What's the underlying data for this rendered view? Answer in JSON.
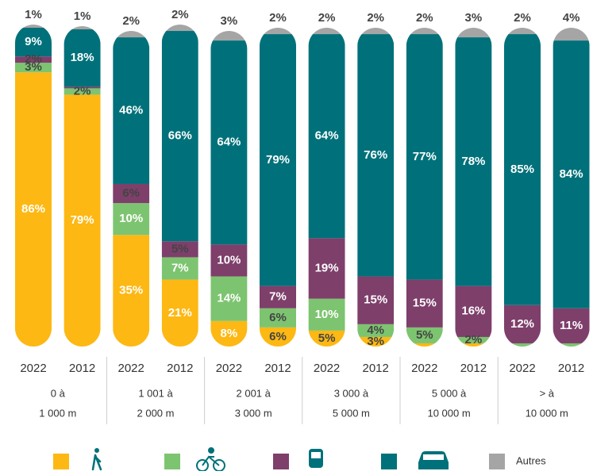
{
  "chart_data": {
    "type": "bar",
    "stacked": true,
    "ylim": [
      0,
      100
    ],
    "categories": [
      "2022",
      "2012",
      "2022",
      "2012",
      "2022",
      "2012",
      "2022",
      "2012",
      "2022",
      "2012",
      "2022",
      "2012"
    ],
    "groups": [
      [
        "0 à",
        "1 000 m"
      ],
      [
        "1 001 à",
        "2 000 m"
      ],
      [
        "2 001 à",
        "3 000 m"
      ],
      [
        "3 000 à",
        "5 000 m"
      ],
      [
        "5 000 à",
        "10 000 m"
      ],
      [
        "> à",
        "10 000 m"
      ]
    ],
    "series": [
      {
        "color": "#FDB813",
        "values": [
          86,
          79,
          35,
          21,
          8,
          6,
          5,
          3,
          1,
          1,
          0,
          0
        ],
        "value_labels": [
          "86%",
          "79%",
          "35%",
          "21%",
          "8%",
          "6%",
          "5%",
          "3%",
          null,
          null,
          null,
          null
        ]
      },
      {
        "color": "#7DC470",
        "values": [
          3,
          2,
          10,
          7,
          14,
          6,
          10,
          4,
          5,
          2,
          1,
          1
        ],
        "value_labels": [
          "3%",
          "2%",
          "10%",
          "7%",
          "14%",
          "6%",
          "10%",
          "4%",
          "5%",
          "2%",
          null,
          null
        ]
      },
      {
        "color": "#7E3F6B",
        "values": [
          2,
          0.5,
          6,
          5,
          10,
          7,
          19,
          15,
          15,
          16,
          12,
          11
        ],
        "value_labels": [
          "2%",
          null,
          "6%",
          "5%",
          "10%",
          "7%",
          "19%",
          "15%",
          "15%",
          "16%",
          "12%",
          "11%"
        ]
      },
      {
        "color": "#00717A",
        "values": [
          9,
          18,
          46,
          66,
          64,
          79,
          64,
          76,
          77,
          78,
          85,
          84
        ],
        "value_labels": [
          "9%",
          "18%",
          "46%",
          "66%",
          "64%",
          "79%",
          "64%",
          "76%",
          "77%",
          "78%",
          "85%",
          "84%"
        ]
      },
      {
        "name": "Autres",
        "color": "#A5A5A5",
        "values": [
          1,
          1,
          2,
          2,
          3,
          2,
          2,
          2,
          2,
          3,
          2,
          4
        ],
        "value_labels": [
          "1%",
          "1%",
          "2%",
          "2%",
          "3%",
          "2%",
          "2%",
          "2%",
          "2%",
          "3%",
          "2%",
          "4%"
        ]
      }
    ]
  }
}
